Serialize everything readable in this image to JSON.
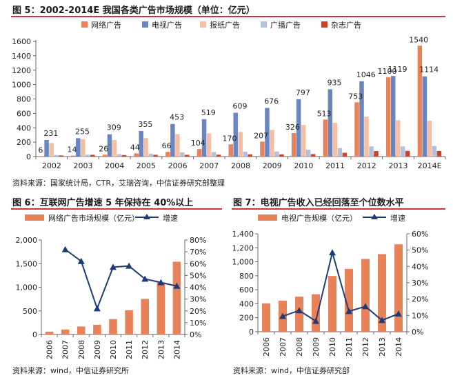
{
  "figure5": {
    "title": "图 5：2002-2014E 我国各类广告市场规模（单位：亿元）",
    "source": "资料来源：国家统计局，CTR，艾瑞咨询，中信证券研究部整理"
  },
  "figure6": {
    "title": "图 6：互联网广告增速 5 年保持在 40%以上",
    "source": "资料来源：wind，中信证券研究所"
  },
  "figure7": {
    "title": "图 7：电视广告收入已经回落至个位数水平",
    "source": "资料来源：wind，中信证券研究部"
  },
  "colors": {
    "internet": "#e8825a",
    "tv": "#6b86bf",
    "newspaper": "#f5bfa3",
    "radio": "#b4c0de",
    "magazine": "#c6452b",
    "line": "#1f3a78",
    "rule": "#c9373c",
    "axis": "#666666"
  },
  "chart_data": [
    {
      "type": "bar",
      "categories": [
        "2002",
        "2003",
        "2004",
        "2005",
        "2006",
        "2007",
        "2008",
        "2009",
        "2010",
        "2011",
        "2012",
        "2013",
        "2014E"
      ],
      "ylim": [
        0,
        1600
      ],
      "yticks": [
        0,
        200,
        400,
        600,
        800,
        1000,
        1200,
        1400,
        1600
      ],
      "legend_position": "top",
      "series": [
        {
          "name": "网络广告",
          "key": "internet",
          "values": [
            6,
            14,
            26,
            44,
            66,
            104,
            170,
            207,
            326,
            513,
            753,
            1100,
            1540
          ]
        },
        {
          "name": "电视广告",
          "key": "tv",
          "values": [
            231,
            255,
            309,
            355,
            453,
            519,
            609,
            676,
            797,
            935,
            1046,
            1119,
            1114
          ]
        },
        {
          "name": "报纸广告",
          "key": "newspaper",
          "values": [
            188,
            243,
            230,
            256,
            312,
            322,
            342,
            370,
            439,
            470,
            555,
            504,
            500
          ]
        },
        {
          "name": "广播广告",
          "key": "radio",
          "values": [
            22,
            26,
            33,
            39,
            57,
            63,
            68,
            71,
            95,
            118,
            141,
            141,
            146
          ]
        },
        {
          "name": "杂志广告",
          "key": "magazine",
          "values": [
            15,
            24,
            21,
            25,
            24,
            26,
            31,
            30,
            34,
            52,
            76,
            78,
            78
          ]
        }
      ],
      "data_labels": {
        "internet": [
          "6",
          "14",
          "26",
          "44",
          "66",
          "104",
          "170",
          "207",
          "326",
          "513",
          "753",
          "1100",
          "1540"
        ],
        "tv": [
          "231",
          "255",
          "309",
          "355",
          "453",
          "519",
          "609",
          "676",
          "797",
          "935",
          "1046",
          "1119",
          "1114"
        ]
      }
    },
    {
      "type": "bar",
      "categories": [
        "2006",
        "2007",
        "2008",
        "2009",
        "2010",
        "2011",
        "2012",
        "2013",
        "2014"
      ],
      "ylim": [
        0,
        2000
      ],
      "yticks": [
        "0",
        "500",
        "1,000",
        "1,500",
        "2,000"
      ],
      "ytick_values": [
        0,
        500,
        1000,
        1500,
        2000
      ],
      "y2lim": [
        0,
        80
      ],
      "y2ticks": [
        "0%",
        "10%",
        "20%",
        "30%",
        "40%",
        "50%",
        "60%",
        "70%",
        "80%"
      ],
      "legend_position": "top",
      "series": [
        {
          "name": "网络广告市场规模（亿元）",
          "type": "bar",
          "values": [
            60,
            105,
            170,
            207,
            326,
            513,
            753,
            1100,
            1540
          ]
        },
        {
          "name": "增速",
          "type": "line",
          "axis": "right",
          "values": [
            null,
            72,
            62,
            22,
            57,
            58,
            47,
            44,
            41
          ]
        }
      ]
    },
    {
      "type": "bar",
      "categories": [
        "2006",
        "2007",
        "2008",
        "2009",
        "2010",
        "2011",
        "2012",
        "2013",
        "2014"
      ],
      "ylim": [
        0,
        1400
      ],
      "yticks": [
        "0",
        "200",
        "400",
        "600",
        "800",
        "1,000",
        "1,200",
        "1,400"
      ],
      "ytick_values": [
        0,
        200,
        400,
        600,
        800,
        1000,
        1200,
        1400
      ],
      "y2lim": [
        0,
        60
      ],
      "y2ticks": [
        "0%",
        "10%",
        "20%",
        "30%",
        "40%",
        "50%",
        "60%"
      ],
      "legend_position": "top",
      "series": [
        {
          "name": "电视广告规模（亿元）",
          "type": "bar",
          "values": [
            404,
            443,
            501,
            536,
            797,
            898,
            1040,
            1110,
            1250
          ]
        },
        {
          "name": "增速",
          "type": "line",
          "axis": "right",
          "values": [
            null,
            9.5,
            13,
            6.5,
            48.5,
            12.5,
            15.5,
            7,
            11
          ]
        }
      ]
    }
  ]
}
